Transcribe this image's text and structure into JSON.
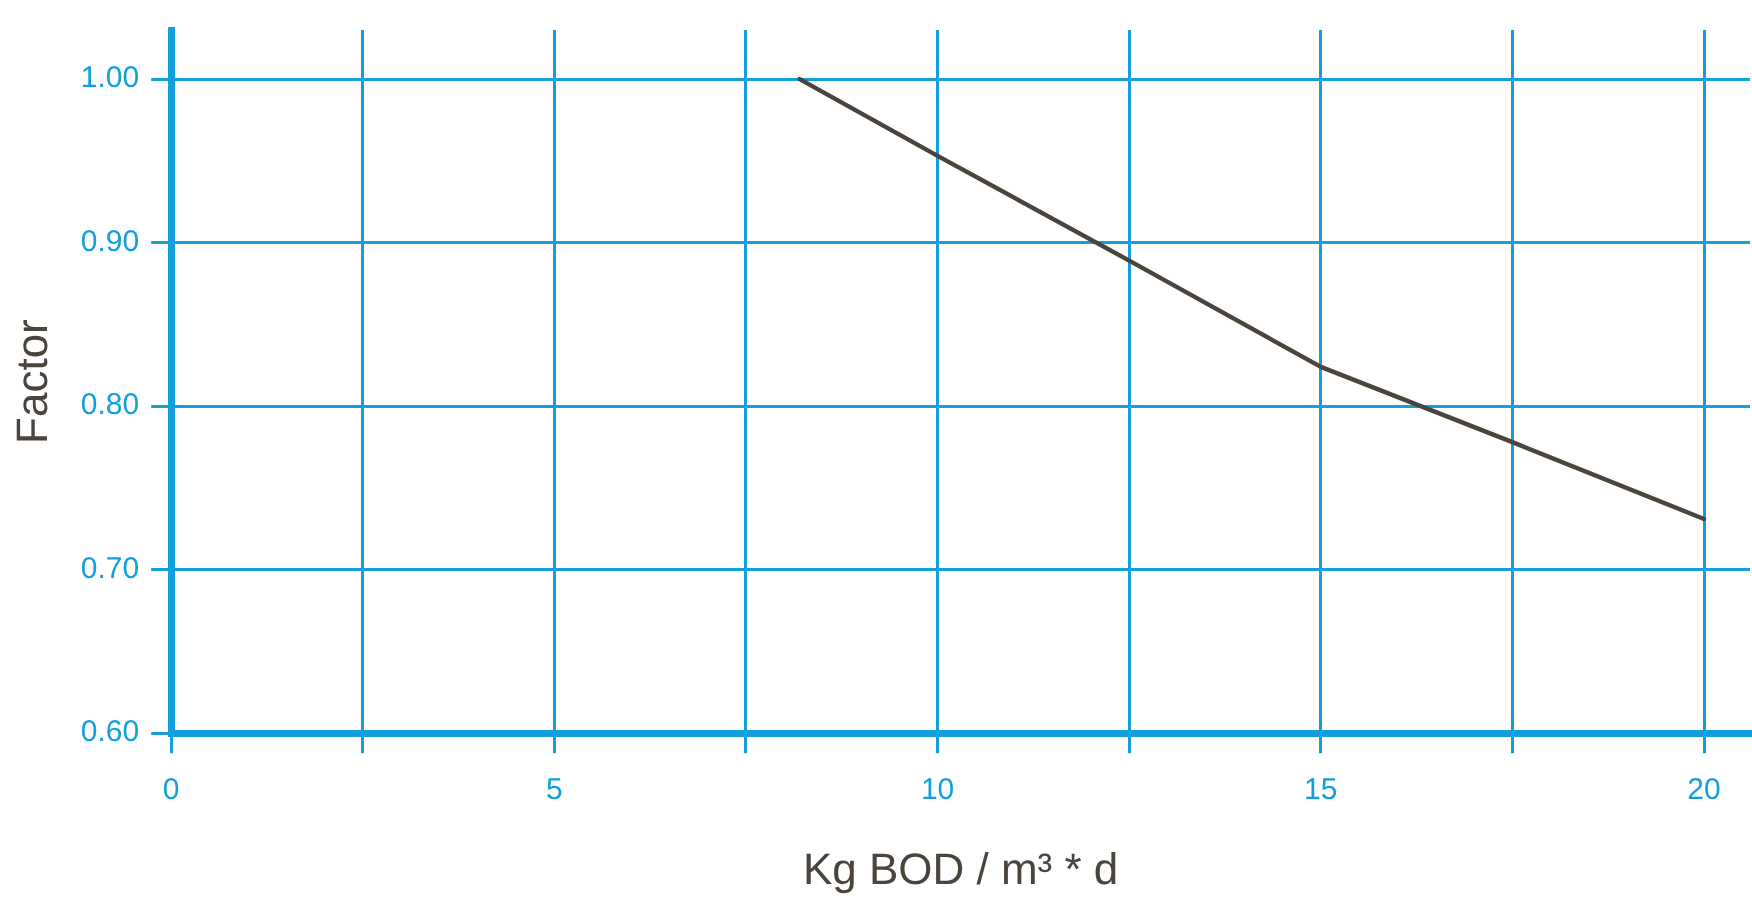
{
  "chart_data": {
    "type": "line",
    "xlabel": "Kg BOD / m³ * d",
    "ylabel": "Factor",
    "x": [
      8.2,
      10,
      12.5,
      15,
      17.5,
      20
    ],
    "series": [
      {
        "color": "#4a443c",
        "values": [
          1.0,
          0.953,
          0.889,
          0.824,
          0.778,
          0.731
        ]
      }
    ],
    "xlim": [
      0,
      20.6
    ],
    "ylim": [
      0.6,
      1.03
    ],
    "xticks": [
      0,
      {
        "value": 2.5,
        "label": null
      },
      5,
      {
        "value": 7.5,
        "label": null
      },
      10,
      {
        "value": 12.5,
        "label": null
      },
      15,
      {
        "value": 17.5,
        "label": null
      },
      20
    ],
    "yticks": [
      {
        "value": 0.6,
        "label": "0.60"
      },
      {
        "value": 0.7,
        "label": "0.70"
      },
      {
        "value": 0.8,
        "label": "0.80"
      },
      {
        "value": 0.9,
        "label": "0.90"
      },
      {
        "value": 1,
        "label": "1.00"
      }
    ],
    "grid": true,
    "legend": false,
    "marker": "none",
    "line_style": "solid"
  }
}
